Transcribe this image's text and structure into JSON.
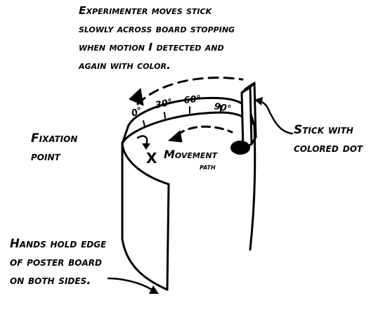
{
  "caption_top": {
    "line1": "Experimenter moves stick",
    "line2": "slowly across board stopping",
    "line3": "when motion I detected and",
    "line4": "again with color."
  },
  "label_fixation": {
    "line1": "Fixation",
    "line2": "point"
  },
  "label_stick": {
    "line1": "Stick with",
    "line2": "colored dot"
  },
  "label_movement": {
    "line1": "Movement",
    "line2": "path"
  },
  "label_hands": {
    "line1": "Hands hold edge",
    "line2": "of poster board",
    "line3": "on both sides."
  },
  "angle_ticks": [
    "0°",
    "30°",
    "60°",
    "90°"
  ],
  "fixation_mark": "X",
  "colors": {
    "ink": "#000000",
    "background": "#ffffff"
  }
}
